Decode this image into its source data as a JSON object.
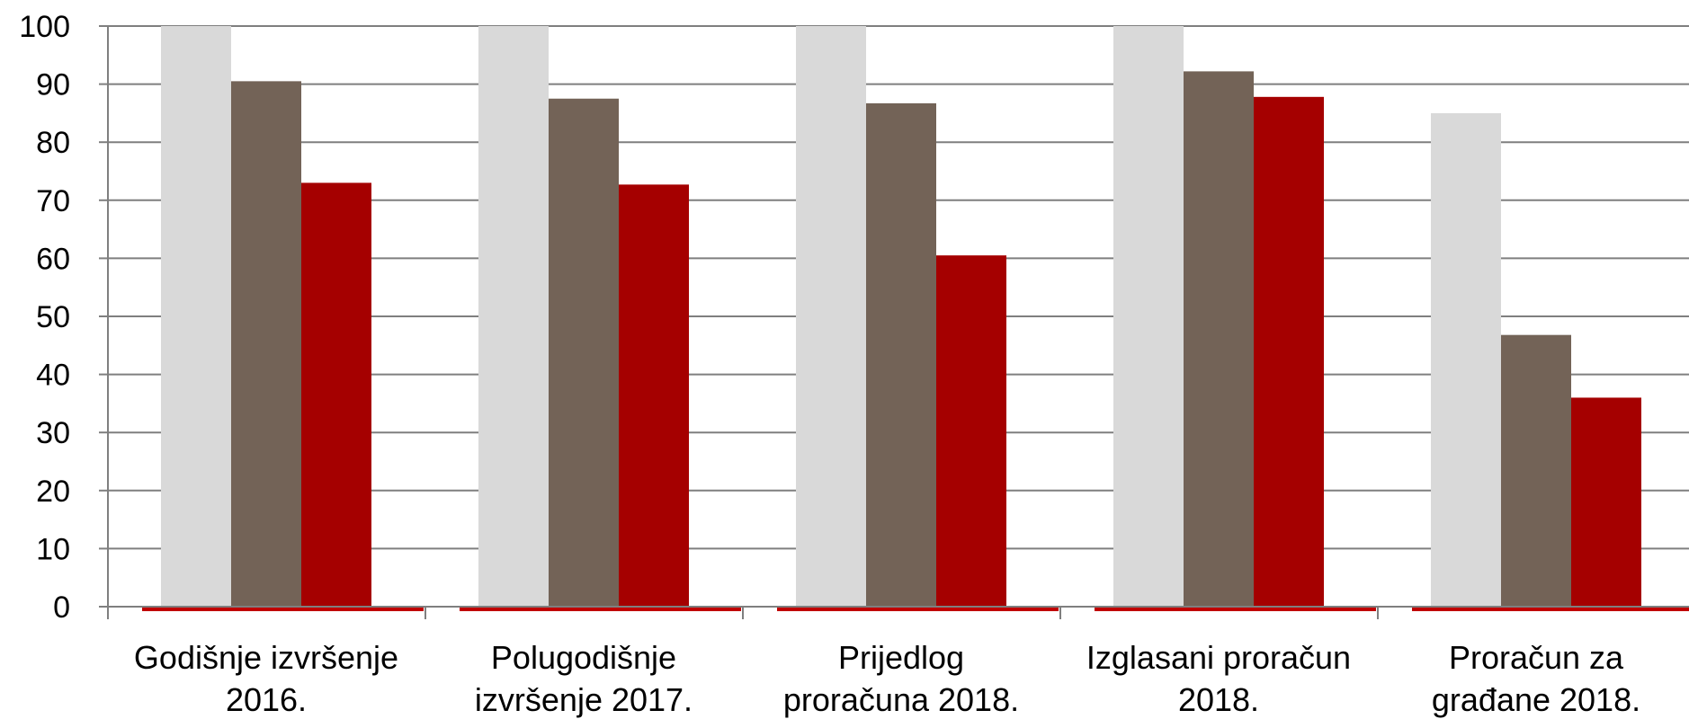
{
  "chart_data": {
    "type": "bar",
    "categories": [
      [
        "Godišnje izvršenje",
        "2016."
      ],
      [
        "Polugodišnje",
        "izvršenje 2017."
      ],
      [
        "Prijedlog",
        "proračuna 2018."
      ],
      [
        "Izglasani proračun",
        "2018."
      ],
      [
        "Proračun za",
        "građane 2018."
      ]
    ],
    "series": [
      {
        "color": "#d9d9d9",
        "values": [
          100,
          100,
          100,
          100,
          85
        ]
      },
      {
        "color": "#736357",
        "values": [
          90.5,
          87.5,
          86.7,
          92.2,
          46.8
        ]
      },
      {
        "color": "#a50000",
        "values": [
          73,
          72.7,
          60.5,
          87.8,
          36
        ]
      }
    ],
    "yticks": [
      0,
      10,
      20,
      30,
      40,
      50,
      60,
      70,
      80,
      90,
      100
    ],
    "ylim": [
      0,
      100
    ],
    "grid": true,
    "gridColor": "#7f7f7f",
    "baselineColor": "#c00000"
  }
}
